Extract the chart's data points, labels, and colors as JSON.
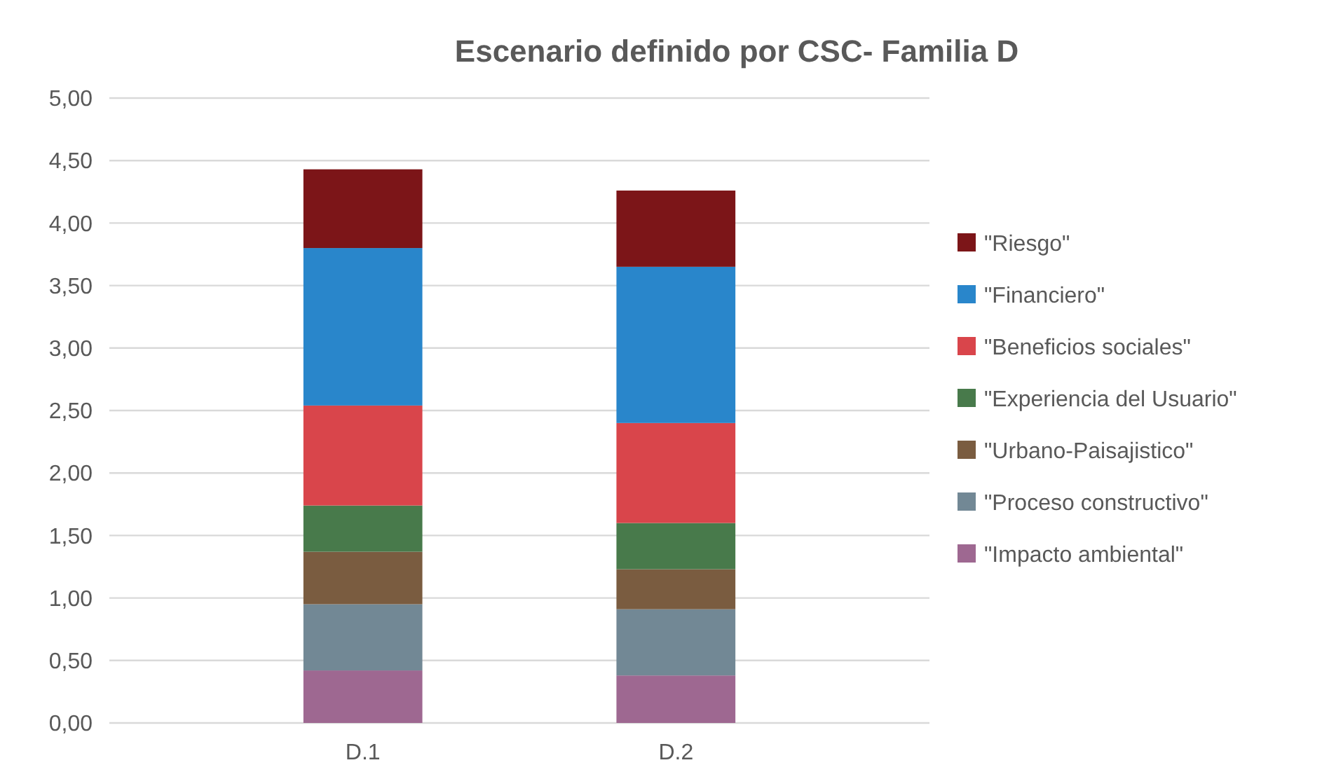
{
  "chart_data": {
    "type": "bar",
    "title": "Escenario definido por CSC- Familia D",
    "categories": [
      "D.1",
      "D.2"
    ],
    "stacked": true,
    "legend": "right",
    "grid": "y",
    "ylim": [
      0,
      5
    ],
    "yticks": [
      {
        "value": 0,
        "label": "0,00"
      },
      {
        "value": 0.5,
        "label": "0,50"
      },
      {
        "value": 1,
        "label": "1,00"
      },
      {
        "value": 1.5,
        "label": "1,50"
      },
      {
        "value": 2,
        "label": "2,00"
      },
      {
        "value": 2.5,
        "label": "2,50"
      },
      {
        "value": 3,
        "label": "3,00"
      },
      {
        "value": 3.5,
        "label": "3,50"
      },
      {
        "value": 4,
        "label": "4,00"
      },
      {
        "value": 4.5,
        "label": "4,50"
      },
      {
        "value": 5,
        "label": "5,00"
      }
    ],
    "series": [
      {
        "name": "\"Impacto ambiental\"",
        "color": "#9e6891",
        "values": [
          0.42,
          0.38
        ]
      },
      {
        "name": "\"Proceso constructivo\"",
        "color": "#728895",
        "values": [
          0.53,
          0.53
        ]
      },
      {
        "name": "\"Urbano-Paisajistico\"",
        "color": "#7a5c40",
        "values": [
          0.42,
          0.32
        ]
      },
      {
        "name": "\"Experiencia del Usuario\"",
        "color": "#487a4b",
        "values": [
          0.37,
          0.37
        ]
      },
      {
        "name": "\"Beneficios sociales\"",
        "color": "#d9454b",
        "values": [
          0.8,
          0.8
        ]
      },
      {
        "name": "\"Financiero\"",
        "color": "#2986cb",
        "values": [
          1.26,
          1.25
        ]
      },
      {
        "name": "\"Riesgo\"",
        "color": "#7c1518",
        "values": [
          0.63,
          0.61
        ]
      }
    ]
  }
}
